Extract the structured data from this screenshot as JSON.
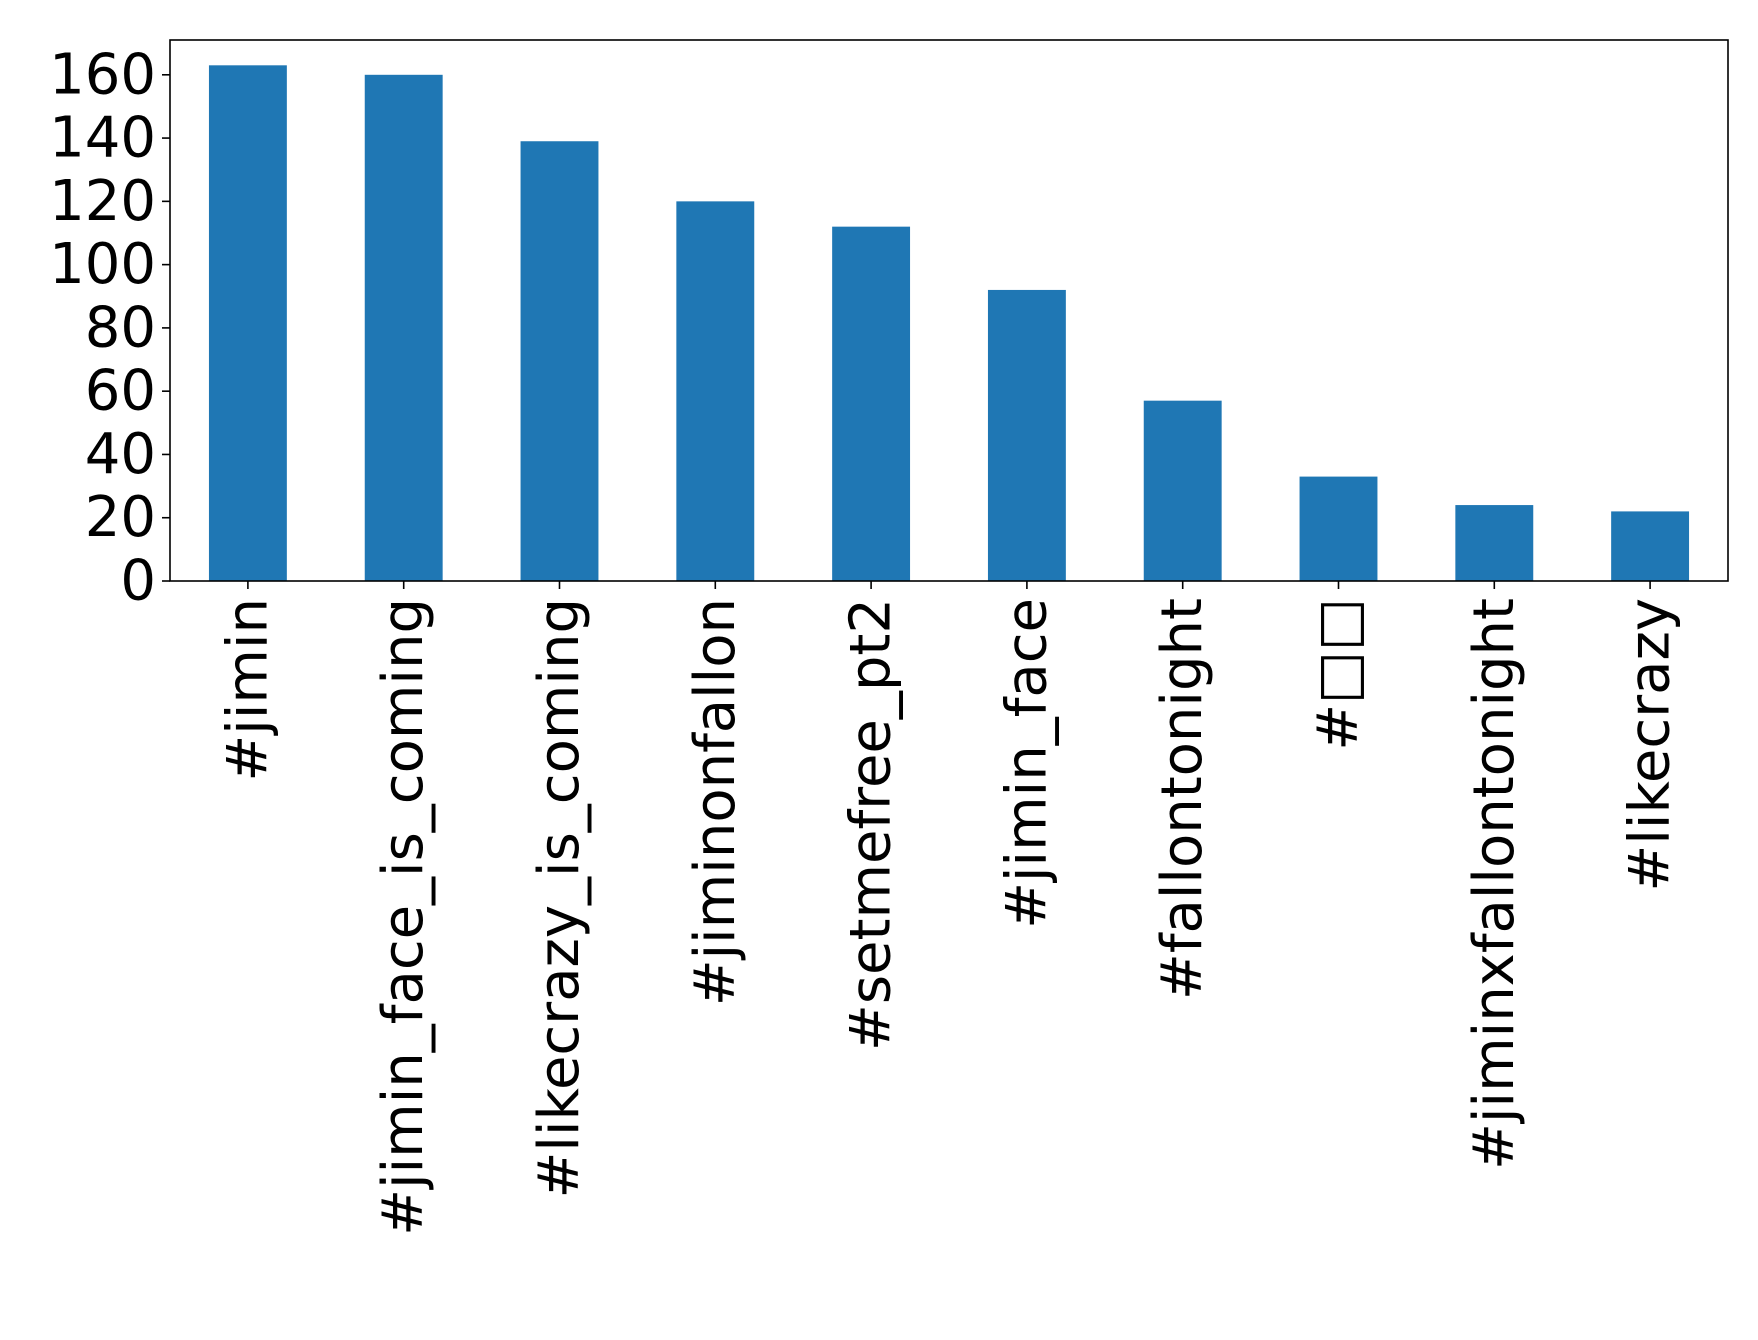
{
  "chart_data": {
    "type": "bar",
    "title": "",
    "xlabel": "",
    "ylabel": "",
    "categories": [
      "#jimin",
      "#jimin_face_is_coming",
      "#likecrazy_is_coming",
      "#jiminonfallon",
      "#setmefree_pt2",
      "#jimin_face",
      "#fallontonight",
      "#□□",
      "#jiminxfallontonight",
      "#likecrazy"
    ],
    "values": [
      163,
      160,
      139,
      120,
      112,
      92,
      57,
      33,
      24,
      22
    ],
    "ylim": [
      0,
      171
    ],
    "yticks": [
      0,
      20,
      40,
      60,
      80,
      100,
      120,
      140,
      160
    ],
    "grid": false,
    "legend": "none",
    "bar_color": "#1f77b4",
    "axis_color": "#000000"
  }
}
